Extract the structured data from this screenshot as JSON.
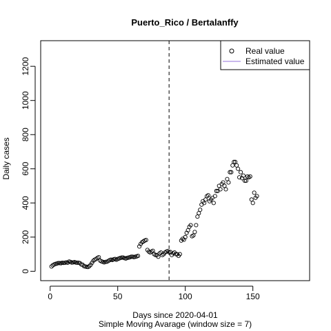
{
  "chart_data": {
    "type": "scatter",
    "title": "Puerto_Rico / Bertalanffy",
    "xlabel": "Days since 2020-04-01",
    "xlabel_sub": "Simple Moving Avarage (window size = 7)",
    "ylabel": "Daily cases",
    "xlim": [
      -7,
      192
    ],
    "ylim": [
      -55,
      1350
    ],
    "x_ticks": [
      0,
      50,
      100,
      150
    ],
    "y_ticks": [
      0,
      200,
      400,
      600,
      800,
      1000,
      1200
    ],
    "x_tick_labels": [
      "0",
      "50",
      "100",
      "150"
    ],
    "y_tick_labels": [
      "0",
      "200",
      "400",
      "600",
      "800",
      "1000",
      "1200"
    ],
    "vline_x": 88,
    "legend": {
      "position": "top-right",
      "entries": [
        {
          "label": "Real value",
          "symbol": "open-circle",
          "color": "#000000"
        },
        {
          "label": "Estimated value",
          "symbol": "line",
          "color": "#9370DB"
        }
      ]
    },
    "series": [
      {
        "name": "Real value",
        "points": [
          [
            1,
            28
          ],
          [
            2,
            35
          ],
          [
            3,
            40
          ],
          [
            4,
            43
          ],
          [
            5,
            45
          ],
          [
            6,
            48
          ],
          [
            7,
            48
          ],
          [
            8,
            47
          ],
          [
            9,
            50
          ],
          [
            10,
            49
          ],
          [
            11,
            50
          ],
          [
            12,
            52
          ],
          [
            13,
            50
          ],
          [
            14,
            57
          ],
          [
            15,
            55
          ],
          [
            16,
            51
          ],
          [
            17,
            52
          ],
          [
            18,
            54
          ],
          [
            19,
            51
          ],
          [
            20,
            50
          ],
          [
            21,
            50
          ],
          [
            22,
            48
          ],
          [
            23,
            40
          ],
          [
            24,
            38
          ],
          [
            25,
            30
          ],
          [
            26,
            28
          ],
          [
            27,
            26
          ],
          [
            28,
            25
          ],
          [
            29,
            30
          ],
          [
            30,
            38
          ],
          [
            31,
            50
          ],
          [
            32,
            62
          ],
          [
            33,
            68
          ],
          [
            34,
            72
          ],
          [
            35,
            78
          ],
          [
            36,
            82
          ],
          [
            37,
            62
          ],
          [
            38,
            58
          ],
          [
            39,
            55
          ],
          [
            40,
            52
          ],
          [
            41,
            55
          ],
          [
            42,
            56
          ],
          [
            43,
            60
          ],
          [
            44,
            65
          ],
          [
            45,
            68
          ],
          [
            46,
            66
          ],
          [
            47,
            70
          ],
          [
            48,
            72
          ],
          [
            49,
            68
          ],
          [
            50,
            72
          ],
          [
            51,
            75
          ],
          [
            52,
            78
          ],
          [
            53,
            80
          ],
          [
            54,
            80
          ],
          [
            55,
            77
          ],
          [
            56,
            75
          ],
          [
            57,
            78
          ],
          [
            58,
            80
          ],
          [
            59,
            82
          ],
          [
            60,
            85
          ],
          [
            61,
            85
          ],
          [
            62,
            83
          ],
          [
            63,
            85
          ],
          [
            64,
            87
          ],
          [
            65,
            90
          ],
          [
            66,
            145
          ],
          [
            67,
            160
          ],
          [
            68,
            170
          ],
          [
            69,
            175
          ],
          [
            70,
            180
          ],
          [
            71,
            183
          ],
          [
            72,
            125
          ],
          [
            73,
            115
          ],
          [
            74,
            110
          ],
          [
            75,
            115
          ],
          [
            76,
            120
          ],
          [
            77,
            100
          ],
          [
            78,
            95
          ],
          [
            79,
            95
          ],
          [
            80,
            85
          ],
          [
            81,
            105
          ],
          [
            82,
            110
          ],
          [
            83,
            95
          ],
          [
            84,
            100
          ],
          [
            85,
            110
          ],
          [
            86,
            115
          ],
          [
            87,
            118
          ],
          [
            88,
            112
          ],
          [
            89,
            113
          ],
          [
            90,
            95
          ],
          [
            91,
            105
          ],
          [
            92,
            110
          ],
          [
            93,
            100
          ],
          [
            94,
            100
          ],
          [
            95,
            90
          ],
          [
            96,
            100
          ],
          [
            97,
            180
          ],
          [
            98,
            190
          ],
          [
            99,
            185
          ],
          [
            100,
            200
          ],
          [
            101,
            225
          ],
          [
            102,
            240
          ],
          [
            103,
            260
          ],
          [
            104,
            270
          ],
          [
            105,
            205
          ],
          [
            106,
            210
          ],
          [
            107,
            230
          ],
          [
            108,
            270
          ],
          [
            109,
            320
          ],
          [
            110,
            340
          ],
          [
            111,
            360
          ],
          [
            112,
            390
          ],
          [
            113,
            410
          ],
          [
            114,
            400
          ],
          [
            115,
            420
          ],
          [
            116,
            440
          ],
          [
            117,
            445
          ],
          [
            118,
            410
          ],
          [
            119,
            420
          ],
          [
            120,
            430
          ],
          [
            121,
            400
          ],
          [
            122,
            440
          ],
          [
            123,
            470
          ],
          [
            124,
            470
          ],
          [
            125,
            500
          ],
          [
            126,
            480
          ],
          [
            127,
            510
          ],
          [
            128,
            520
          ],
          [
            129,
            500
          ],
          [
            130,
            480
          ],
          [
            131,
            540
          ],
          [
            132,
            520
          ],
          [
            133,
            580
          ],
          [
            134,
            580
          ],
          [
            135,
            620
          ],
          [
            136,
            640
          ],
          [
            137,
            640
          ],
          [
            138,
            620
          ],
          [
            139,
            600
          ],
          [
            140,
            550
          ],
          [
            141,
            580
          ],
          [
            142,
            545
          ],
          [
            143,
            560
          ],
          [
            144,
            530
          ],
          [
            145,
            530
          ],
          [
            146,
            555
          ],
          [
            147,
            550
          ],
          [
            148,
            555
          ],
          [
            149,
            420
          ],
          [
            150,
            400
          ],
          [
            151,
            460
          ],
          [
            152,
            430
          ],
          [
            153,
            440
          ]
        ]
      },
      {
        "name": "Estimated value",
        "points": []
      }
    ]
  }
}
